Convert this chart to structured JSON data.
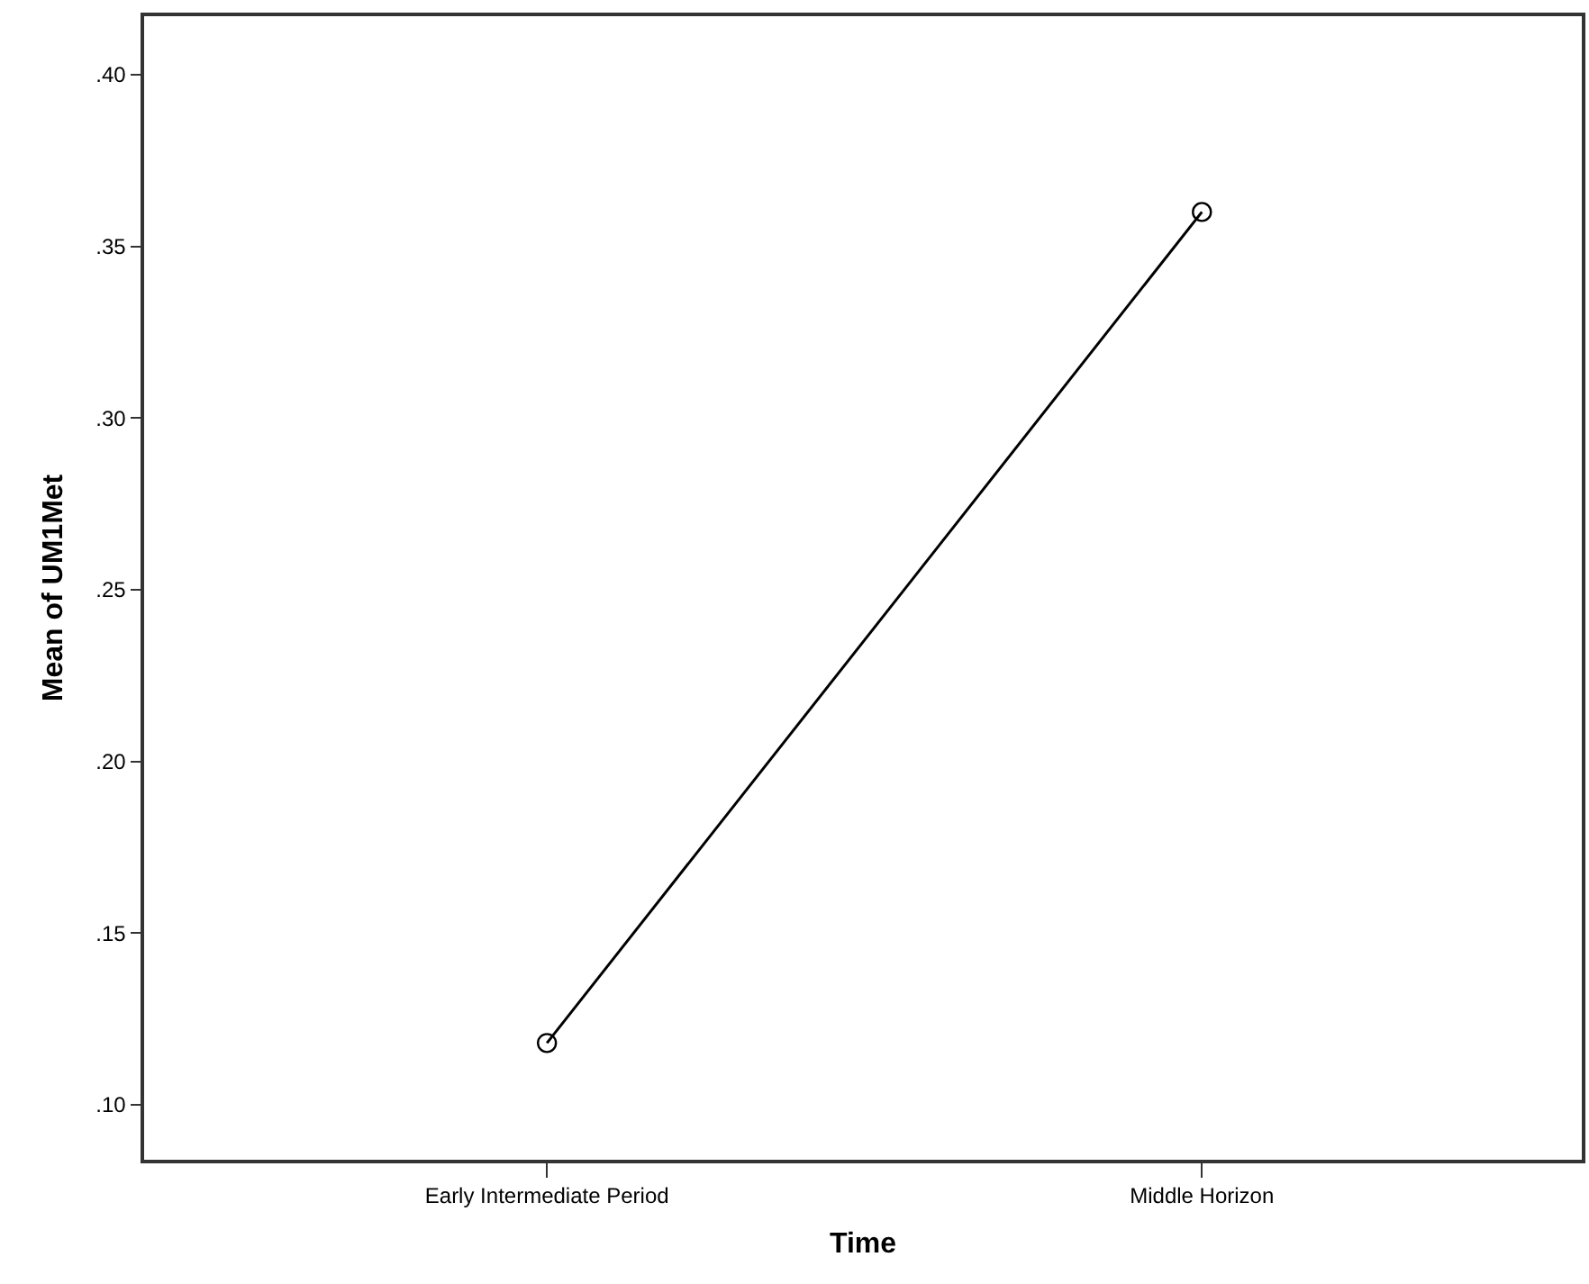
{
  "chart_data": {
    "type": "line",
    "xlabel": "Time",
    "ylabel": "Mean of UM1Met",
    "categories": [
      "Early Intermediate Period",
      "Middle Horizon"
    ],
    "series": [
      {
        "color": "#000000",
        "values": [
          0.118,
          0.36
        ]
      }
    ],
    "ylim": [
      0.084,
      0.417
    ],
    "yticks": [
      {
        "value": 0.1,
        "label": ".10"
      },
      {
        "value": 0.15,
        "label": ".15"
      },
      {
        "value": 0.2,
        "label": ".20"
      },
      {
        "value": 0.25,
        "label": ".25"
      },
      {
        "value": 0.3,
        "label": ".30"
      },
      {
        "value": 0.35,
        "label": ".35"
      },
      {
        "value": 0.4,
        "label": ".40"
      }
    ],
    "marker": "circle",
    "line_style": "solid"
  }
}
